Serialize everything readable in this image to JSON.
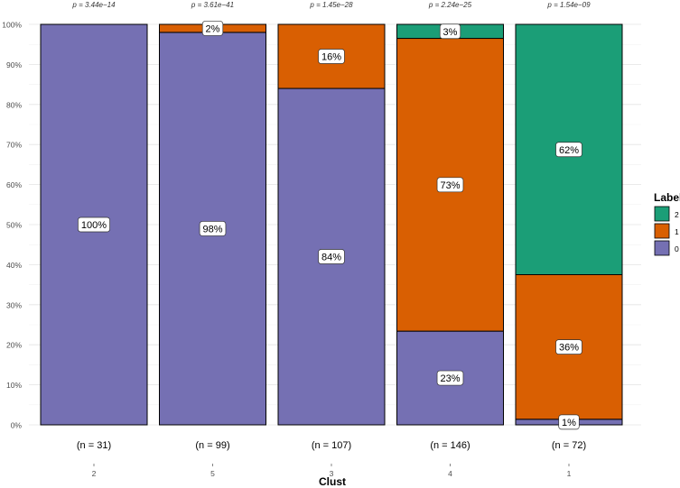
{
  "chart_data": {
    "type": "bar",
    "stacked": "percent",
    "xlabel": "Clust",
    "ylabel": "",
    "ylim": [
      0,
      100
    ],
    "y_ticks": [
      "0%",
      "10%",
      "20%",
      "30%",
      "40%",
      "50%",
      "60%",
      "70%",
      "80%",
      "90%",
      "100%"
    ],
    "grid": true,
    "legend_title": "Label",
    "legend_position": "right",
    "categories": [
      "2",
      "5",
      "3",
      "4",
      "1"
    ],
    "n_labels": [
      "(n = 31)",
      "(n = 99)",
      "(n = 107)",
      "(n = 146)",
      "(n = 72)"
    ],
    "p_labels": [
      "p = 3.44e−14",
      "p = 3.61e−41",
      "p = 1.45e−28",
      "p = 2.24e−25",
      "p = 1.54e−09"
    ],
    "series": [
      {
        "name": "0",
        "color": "#7570B3",
        "values": [
          100,
          98,
          84,
          23.4,
          1.4
        ],
        "labels": [
          "100%",
          "98%",
          "84%",
          "23%",
          "1%"
        ]
      },
      {
        "name": "1",
        "color": "#D95F02",
        "values": [
          0,
          2,
          16,
          73.1,
          36.1
        ],
        "labels": [
          "",
          "2%",
          "16%",
          "73%",
          "36%"
        ]
      },
      {
        "name": "2",
        "color": "#1B9E77",
        "values": [
          0,
          0,
          0,
          3.5,
          62.5
        ],
        "labels": [
          "",
          "",
          "",
          "3%",
          "62%"
        ]
      }
    ],
    "legend_order": [
      "2",
      "1",
      "0"
    ]
  }
}
